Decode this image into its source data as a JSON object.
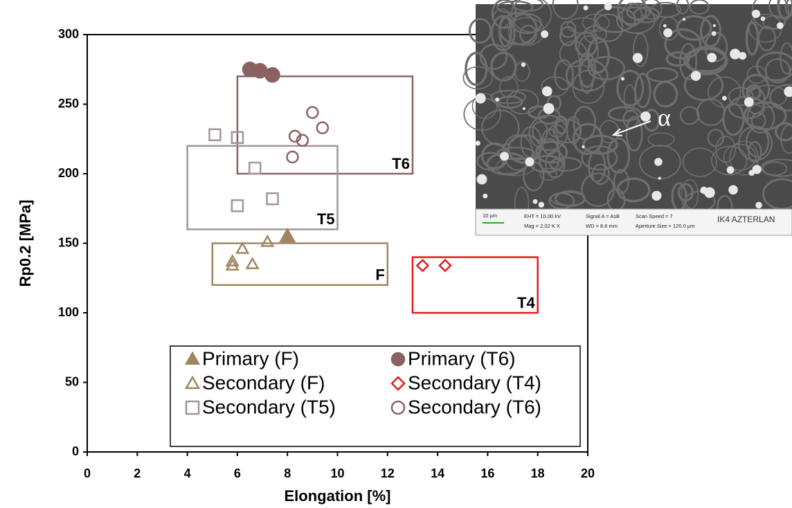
{
  "chart_data": {
    "type": "scatter",
    "x_label": "Elongation [%]",
    "y_label": "Rp0.2 [MPa]",
    "xlim": [
      0,
      20
    ],
    "ylim": [
      0,
      300
    ],
    "xticks": [
      0,
      2,
      4,
      6,
      8,
      10,
      12,
      14,
      16,
      18,
      20
    ],
    "yticks": [
      0,
      50,
      100,
      150,
      200,
      250,
      300
    ],
    "series": [
      {
        "name": "Primary (F)",
        "color": "#9e8661",
        "marker": "triangle",
        "filled": true,
        "x": [
          8.0
        ],
        "values": [
          155
        ]
      },
      {
        "name": "Primary (T6)",
        "color": "#8a6262",
        "marker": "circle",
        "filled": true,
        "x": [
          6.5,
          6.9,
          7.4
        ],
        "values": [
          275,
          274,
          271
        ]
      },
      {
        "name": "Secondary (F)",
        "color": "#9e8661",
        "marker": "triangle",
        "filled": false,
        "x": [
          5.8,
          5.8,
          6.2,
          6.6,
          7.2
        ],
        "values": [
          137,
          134,
          146,
          135,
          151
        ]
      },
      {
        "name": "Secondary (T4)",
        "color": "#e31a1c",
        "marker": "diamond",
        "filled": false,
        "x": [
          13.4,
          14.3
        ],
        "values": [
          134,
          134
        ]
      },
      {
        "name": "Secondary (T5)",
        "color": "#a3939a",
        "marker": "square",
        "filled": false,
        "x": [
          5.1,
          6.0,
          6.7,
          6.0,
          7.4
        ],
        "values": [
          228,
          226,
          204,
          177,
          182
        ]
      },
      {
        "name": "Secondary (T6)",
        "color": "#8a6262",
        "marker": "circle",
        "filled": false,
        "x": [
          9.0,
          9.4,
          8.3,
          8.6,
          8.2
        ],
        "values": [
          244,
          233,
          227,
          224,
          212
        ]
      }
    ],
    "regions": [
      {
        "label": "T6",
        "color": "#8a6262",
        "xlim": [
          6,
          13
        ],
        "ylim": [
          200,
          270
        ]
      },
      {
        "label": "T5",
        "color": "#a3939a",
        "xlim": [
          4,
          10
        ],
        "ylim": [
          160,
          220
        ]
      },
      {
        "label": "F",
        "color": "#9e8661",
        "xlim": [
          5,
          12
        ],
        "ylim": [
          120,
          150
        ]
      },
      {
        "label": "T4",
        "color": "#e31a1c",
        "xlim": [
          13,
          18
        ],
        "ylim": [
          100,
          140
        ]
      }
    ]
  },
  "inset": {
    "phase_label": "α",
    "scale_bar": "10 µm",
    "eht": "EHT = 10.00 kV",
    "mag": "Mag =  2.02 K X",
    "signal": "Signal A = AsB",
    "wd": "WD =  8.6 mm",
    "scan": "Scan Speed = 7",
    "aperture": "Aperture Size = 120.0 µm",
    "logo": "IK4 AZTERLAN"
  }
}
